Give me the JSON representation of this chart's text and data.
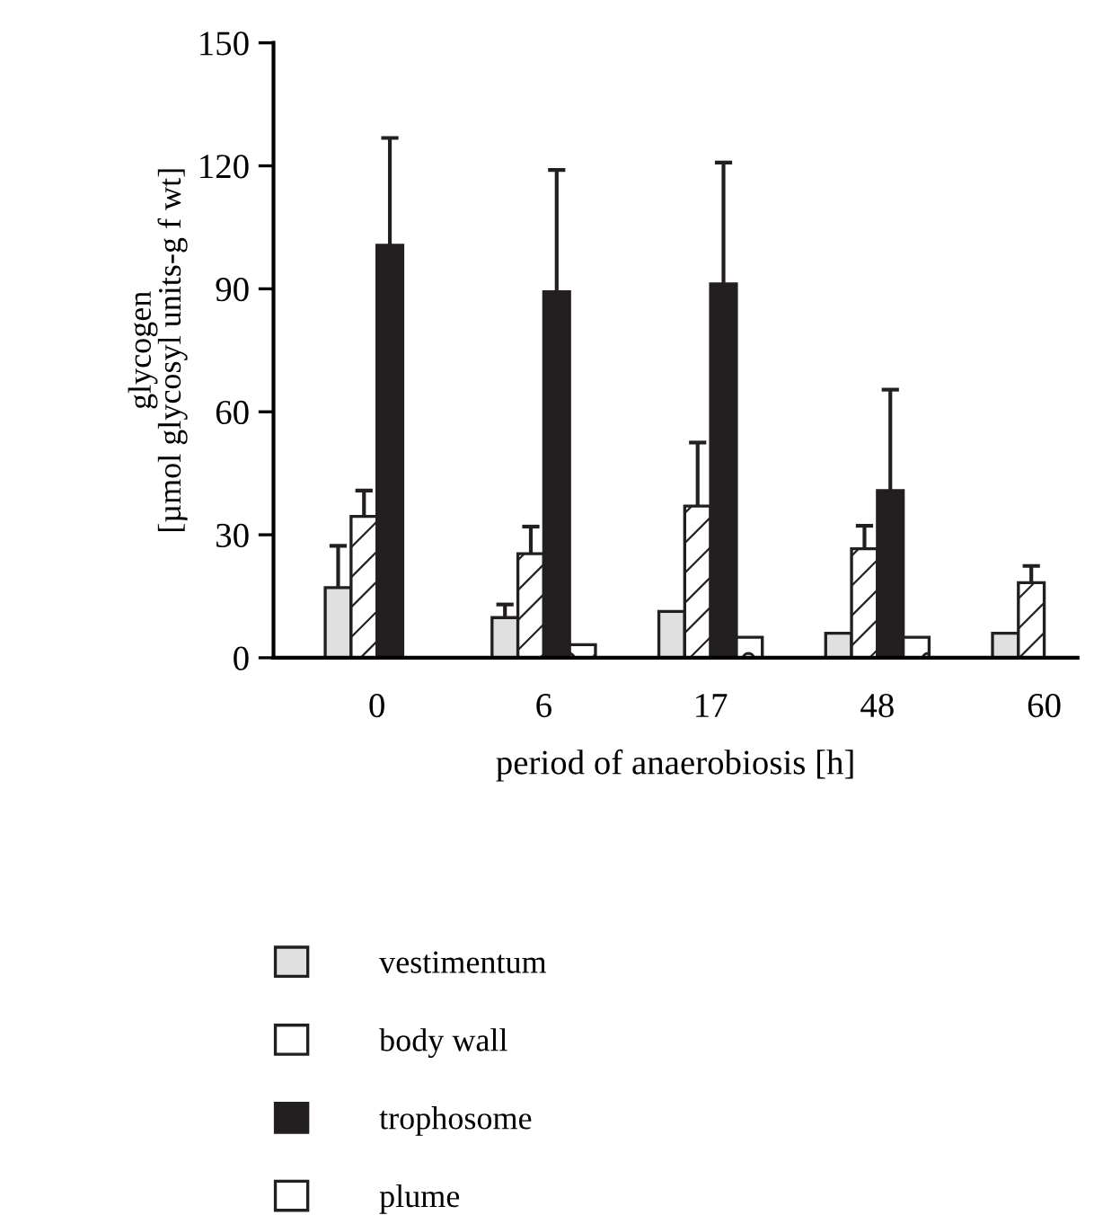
{
  "chart_data": {
    "type": "bar",
    "xlabel": "period of anaerobiosis [h]",
    "ylabel": "glycogen\n[µmol glycosyl units-g f wt]",
    "categories": [
      "0",
      "6",
      "17",
      "48",
      "60"
    ],
    "series": [
      {
        "name": "vestimentum",
        "color": "#e0e0e0",
        "values": [
          17.1,
          9.8,
          11.3,
          6,
          6
        ],
        "errors": [
          [
            17.1,
            27.3
          ],
          [
            9.8,
            13
          ],
          null,
          null,
          null
        ]
      },
      {
        "name": "body wall",
        "color": "#ffffff",
        "values": [
          34.5,
          25.4,
          37,
          26.6,
          18.3
        ],
        "errors": [
          [
            34.5,
            40.8
          ],
          [
            25.4,
            32
          ],
          [
            37,
            52.5
          ],
          [
            26.6,
            32.2
          ],
          [
            18.3,
            22.4
          ]
        ]
      },
      {
        "name": "trophosome",
        "color": "#231f20",
        "values": [
          100.6,
          89.3,
          91.2,
          40.8,
          null
        ],
        "errors": [
          [
            100.6,
            126.8
          ],
          [
            89.3,
            119
          ],
          [
            91.2,
            120.8
          ],
          [
            40.8,
            65.4
          ],
          null
        ]
      },
      {
        "name": "plume",
        "color": "#ffffff",
        "values": [
          null,
          3.2,
          5,
          5,
          null
        ],
        "errors": [
          null,
          null,
          null,
          null,
          null
        ]
      }
    ],
    "ylim": [
      0,
      150
    ],
    "yticks": [
      0,
      30,
      60,
      90,
      120,
      150
    ],
    "grid": false,
    "legend": "bottom"
  }
}
